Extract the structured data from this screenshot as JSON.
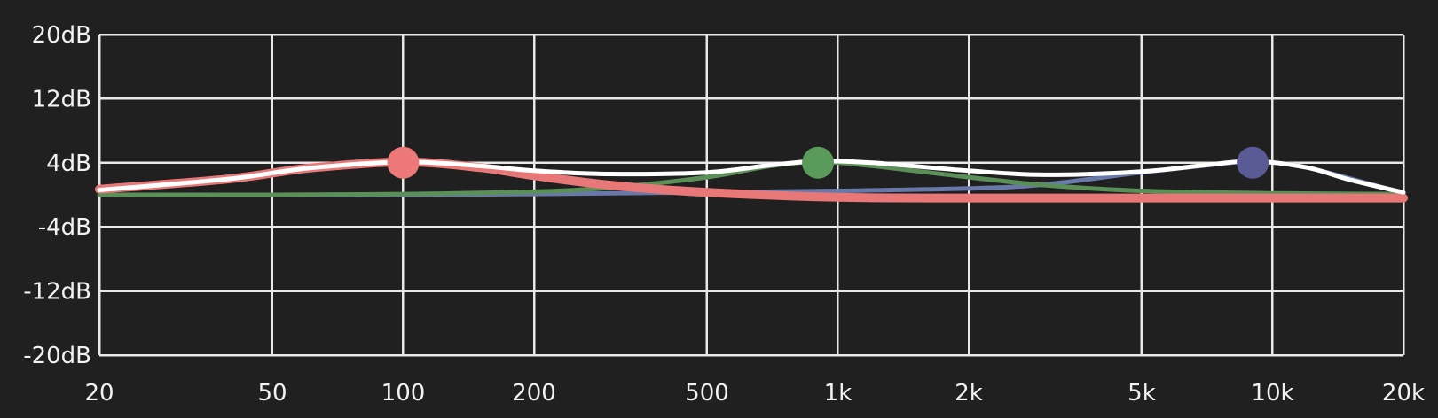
{
  "chart_data": {
    "type": "line",
    "title": "",
    "xlabel": "",
    "ylabel": "",
    "x_scale": "log",
    "xlim": [
      20,
      20000
    ],
    "ylim": [
      -20,
      20
    ],
    "grid": true,
    "x_ticks": [
      20,
      50,
      100,
      200,
      500,
      1000,
      2000,
      5000,
      10000,
      20000
    ],
    "x_tick_labels": [
      "20",
      "50",
      "100",
      "200",
      "500",
      "1k",
      "2k",
      "5k",
      "10k",
      "20k"
    ],
    "y_ticks": [
      20,
      12,
      4,
      -4,
      -12,
      -20
    ],
    "y_tick_labels": [
      "20dB",
      "12dB",
      "4dB",
      "-4dB",
      "-12dB",
      "-20dB"
    ],
    "series": [
      {
        "color": "#6878a8",
        "x": [
          20,
          50,
          100,
          200,
          300,
          500,
          700,
          1000,
          2000,
          3000,
          5000,
          8000,
          9000,
          12000,
          20000
        ],
        "y": [
          0,
          0,
          0,
          0.1,
          0.2,
          0.3,
          0.4,
          0.5,
          0.8,
          1.3,
          2.8,
          4,
          4.2,
          3.4,
          0.2
        ]
      },
      {
        "color": "#5a8f57",
        "x": [
          20,
          50,
          100,
          200,
          300,
          500,
          700,
          900,
          1200,
          2000,
          3000,
          5000,
          10000,
          20000
        ],
        "y": [
          0,
          0,
          0.1,
          0.4,
          0.9,
          2.2,
          3.6,
          4.1,
          3.6,
          2.2,
          1.2,
          0.5,
          0.2,
          0.1
        ]
      },
      {
        "color": "#e87878",
        "x": [
          20,
          40,
          60,
          100,
          150,
          200,
          300,
          500,
          1000,
          2000,
          5000,
          10000,
          20000
        ],
        "y": [
          0.7,
          2.0,
          3.3,
          4.1,
          3.4,
          2.4,
          1.2,
          0.3,
          -0.3,
          -0.4,
          -0.4,
          -0.4,
          -0.4
        ]
      },
      {
        "color": "#ffffff",
        "x": [
          20,
          40,
          60,
          100,
          150,
          200,
          300,
          500,
          700,
          900,
          1200,
          2000,
          3000,
          5000,
          7000,
          9000,
          12000,
          15000,
          20000
        ],
        "y": [
          0.6,
          2.0,
          3.3,
          4.1,
          3.6,
          3.0,
          2.6,
          2.8,
          3.7,
          4.2,
          4.0,
          3.0,
          2.5,
          2.9,
          3.7,
          4.2,
          3.4,
          1.9,
          0.3
        ]
      }
    ],
    "band_handles": [
      {
        "freq": 100,
        "gain": 4,
        "color": "#ec7878"
      },
      {
        "freq": 900,
        "gain": 4,
        "color": "#5a9a5a"
      },
      {
        "freq": 9000,
        "gain": 4,
        "color": "#5a5a96"
      }
    ]
  }
}
